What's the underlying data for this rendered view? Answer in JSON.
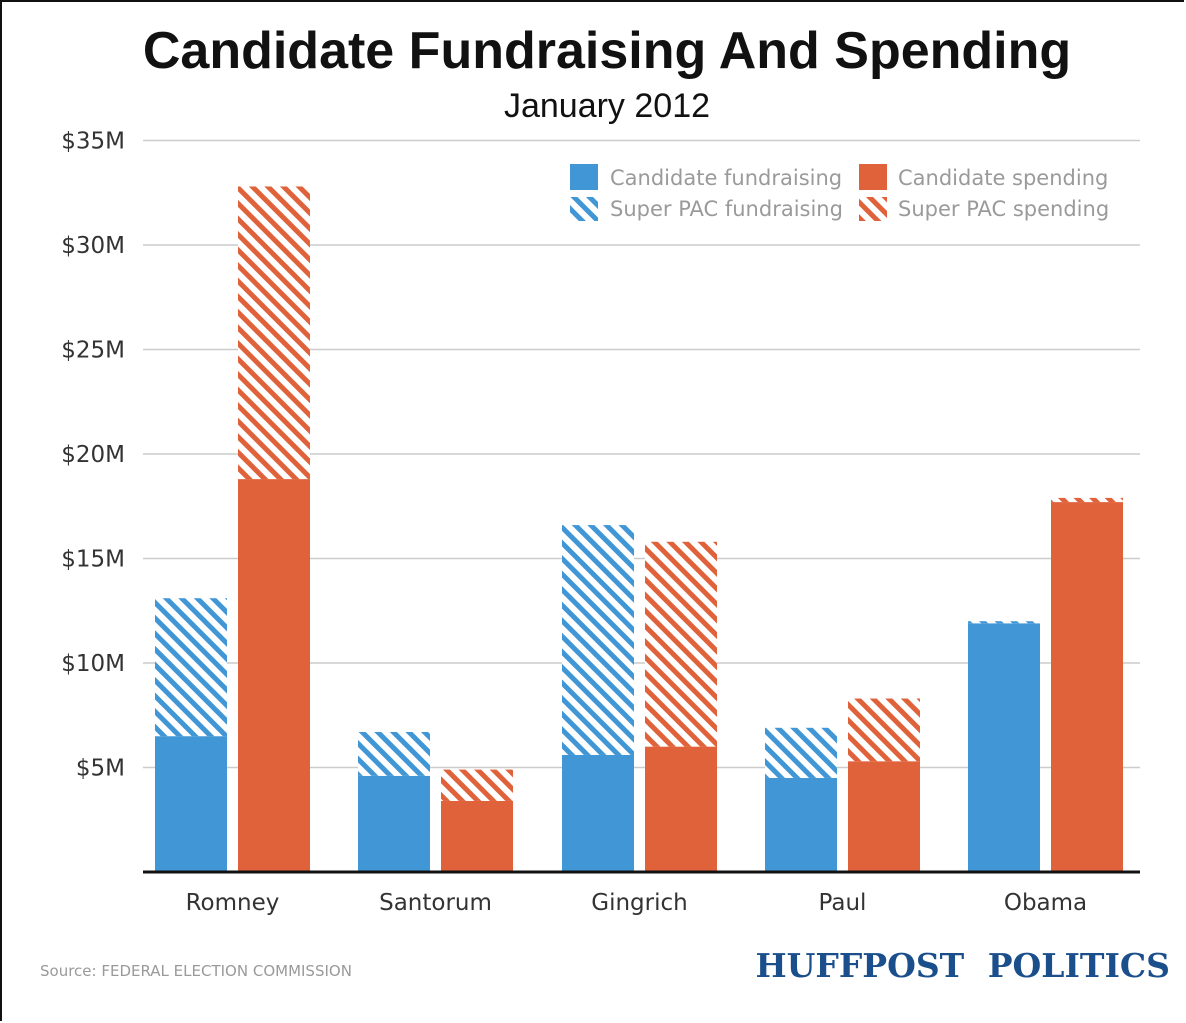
{
  "chart_data": {
    "type": "bar",
    "title": "Candidate Fundraising And Spending",
    "subtitle": "January 2012",
    "ylim": [
      0,
      35
    ],
    "y_ticks": [
      "$5M",
      "$10M",
      "$15M",
      "$20M",
      "$25M",
      "$30M",
      "$35M"
    ],
    "y_tick_values": [
      5,
      10,
      15,
      20,
      25,
      30,
      35
    ],
    "grid": true,
    "legend_position": "top-right",
    "categories": [
      "Romney",
      "Santorum",
      "Gingrich",
      "Paul",
      "Obama"
    ],
    "series": [
      {
        "name": "Candidate fundraising",
        "stack": "fundraising",
        "values": [
          6.5,
          4.6,
          5.6,
          4.5,
          11.9
        ]
      },
      {
        "name": "Super PAC fundraising",
        "stack": "fundraising",
        "values": [
          6.6,
          2.1,
          11.0,
          2.4,
          0.1
        ]
      },
      {
        "name": "Candidate spending",
        "stack": "spending",
        "values": [
          18.8,
          3.4,
          6.0,
          5.3,
          17.7
        ]
      },
      {
        "name": "Super PAC spending",
        "stack": "spending",
        "values": [
          14.0,
          1.5,
          9.8,
          3.0,
          0.2
        ]
      }
    ],
    "source": "Source: FEDERAL ELECTION COMMISSION",
    "brand": {
      "part1": "HUFFPOST",
      "part2": "POLITICS"
    }
  },
  "colors": {
    "fundraising": "#4197d6",
    "spending": "#e0623b",
    "grid": "#cccccc",
    "axis": "#111111",
    "brand": "#1b4f8c"
  }
}
